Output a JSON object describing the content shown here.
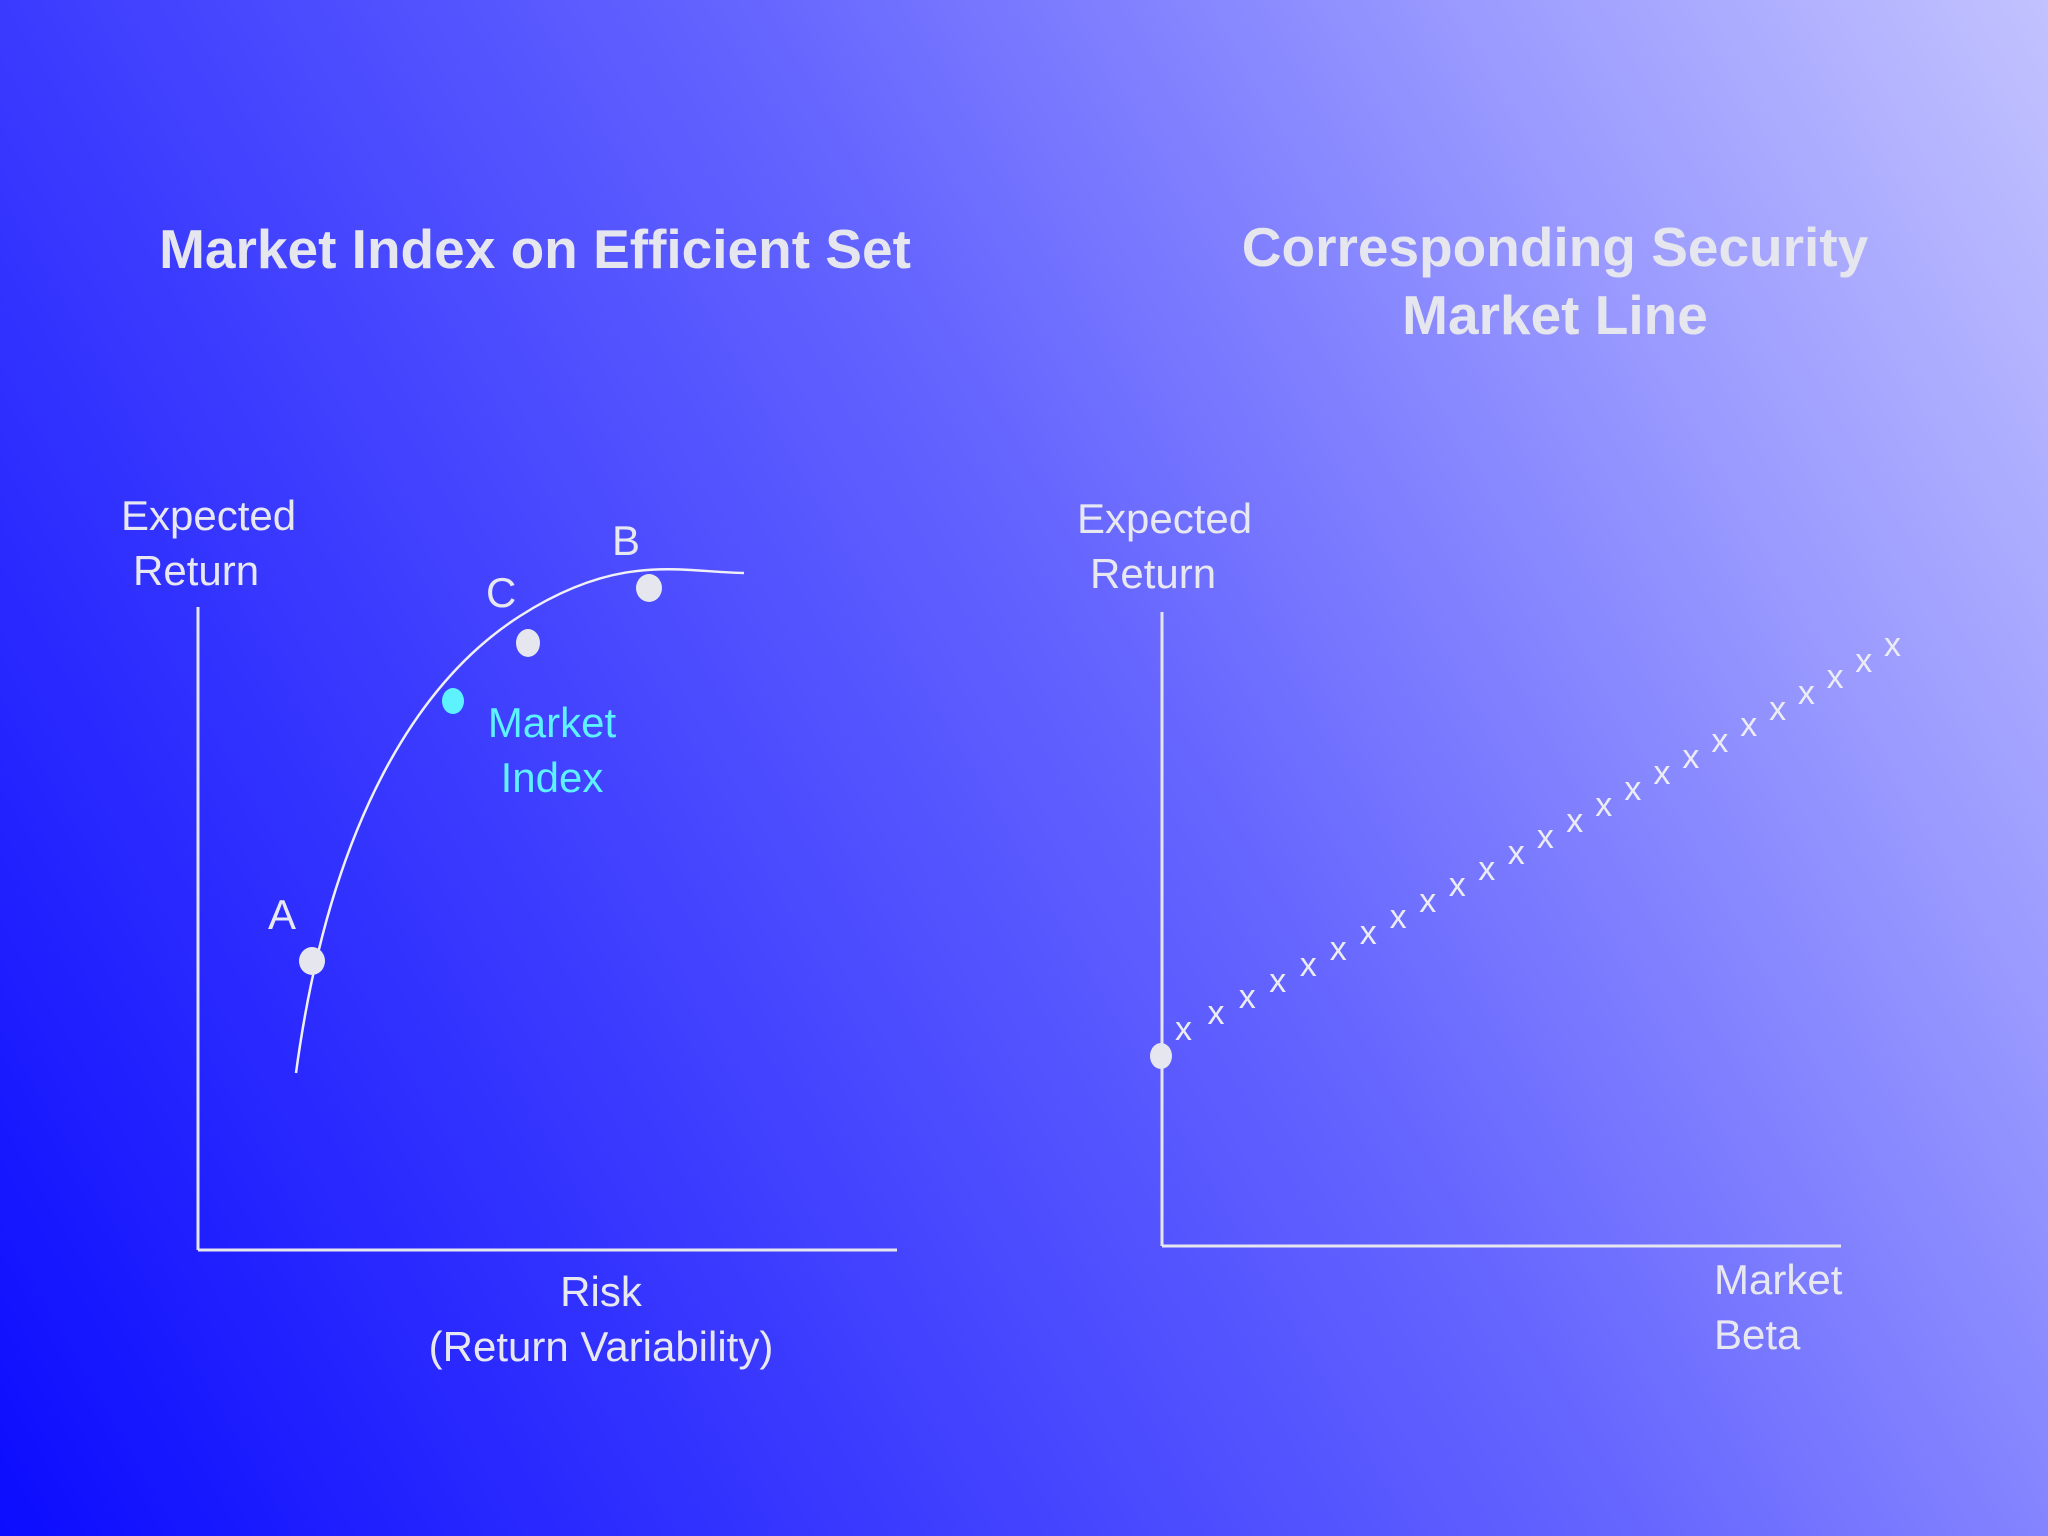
{
  "left_panel": {
    "title": "Market Index on Efficient Set",
    "y_label": [
      "Expected",
      "Return"
    ],
    "x_label": [
      "Risk",
      "(Return Variability)"
    ],
    "points": [
      {
        "label": "A"
      },
      {
        "label": "Market Index",
        "label_lines": [
          "Market",
          "Index"
        ]
      },
      {
        "label": "C"
      },
      {
        "label": "B"
      }
    ],
    "colors": {
      "curve": "#f0f0f8",
      "point": "#e6e6ee",
      "market_index": "#5ef2ff"
    }
  },
  "right_panel": {
    "title_lines": [
      "Corresponding Security",
      "Market Line"
    ],
    "y_label": [
      "Expected",
      "Return"
    ],
    "x_label": [
      "Market",
      "Beta"
    ],
    "marker": "x",
    "colors": {
      "line_marker": "#ececf5",
      "intercept_point": "#e6e6ee"
    }
  },
  "background": {
    "from": "#0c0cff",
    "to": "#c2c2ff"
  }
}
